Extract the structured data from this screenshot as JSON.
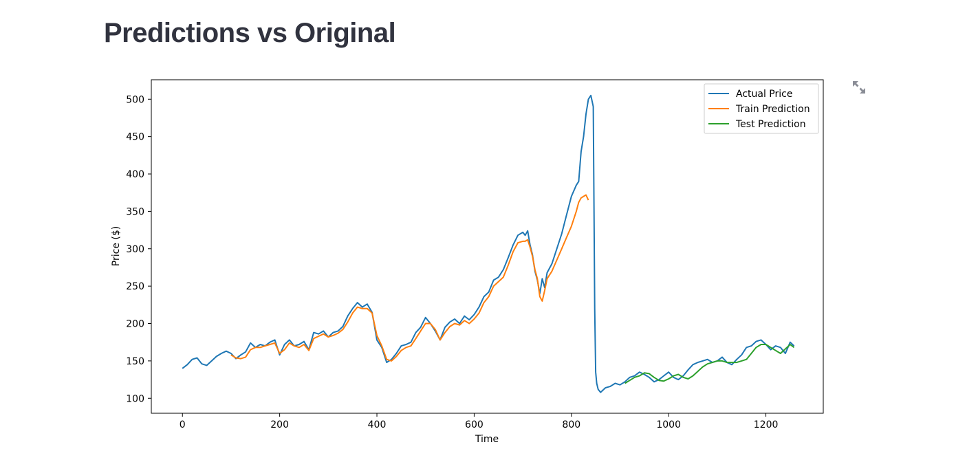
{
  "page": {
    "title": "Predictions vs Original",
    "toolbar": {
      "expand_icon": "expand-arrows-icon"
    }
  },
  "chart_data": {
    "type": "line",
    "title": "",
    "xlabel": "Time",
    "ylabel": "Price ($)",
    "xlim": [
      -64,
      1318
    ],
    "ylim": [
      80,
      526
    ],
    "xticks": [
      0,
      200,
      400,
      600,
      800,
      1000,
      1200
    ],
    "yticks": [
      100,
      150,
      200,
      250,
      300,
      350,
      400,
      450,
      500
    ],
    "grid": false,
    "legend_position": "top-right",
    "series": [
      {
        "name": "Actual Price",
        "color": "#1f77b4",
        "x": [
          0,
          10,
          20,
          30,
          40,
          50,
          60,
          70,
          80,
          90,
          100,
          110,
          120,
          130,
          140,
          150,
          160,
          170,
          180,
          190,
          200,
          210,
          220,
          230,
          240,
          250,
          260,
          270,
          280,
          290,
          300,
          310,
          320,
          330,
          340,
          350,
          360,
          370,
          380,
          390,
          400,
          410,
          420,
          430,
          440,
          450,
          460,
          470,
          480,
          490,
          500,
          510,
          520,
          530,
          540,
          550,
          560,
          570,
          580,
          590,
          600,
          610,
          620,
          630,
          640,
          650,
          660,
          670,
          680,
          690,
          700,
          705,
          710,
          715,
          720,
          725,
          730,
          735,
          740,
          745,
          750,
          760,
          770,
          780,
          790,
          800,
          810,
          815,
          820,
          825,
          830,
          835,
          840,
          845,
          848,
          850,
          852,
          855,
          860,
          870,
          880,
          890,
          900,
          910,
          920,
          930,
          940,
          950,
          960,
          970,
          980,
          990,
          1000,
          1010,
          1020,
          1030,
          1040,
          1050,
          1060,
          1070,
          1080,
          1090,
          1100,
          1110,
          1120,
          1130,
          1140,
          1150,
          1160,
          1170,
          1180,
          1190,
          1200,
          1210,
          1220,
          1230,
          1240,
          1250,
          1258
        ],
        "values": [
          140,
          145,
          152,
          154,
          146,
          144,
          150,
          156,
          160,
          163,
          160,
          153,
          158,
          162,
          174,
          168,
          172,
          170,
          175,
          178,
          158,
          172,
          178,
          170,
          172,
          176,
          165,
          188,
          186,
          190,
          182,
          188,
          190,
          196,
          210,
          220,
          228,
          222,
          226,
          215,
          178,
          168,
          148,
          152,
          160,
          170,
          172,
          175,
          188,
          195,
          208,
          200,
          190,
          178,
          195,
          202,
          206,
          200,
          210,
          205,
          212,
          222,
          236,
          242,
          258,
          262,
          272,
          288,
          305,
          318,
          322,
          318,
          324,
          305,
          292,
          270,
          258,
          240,
          260,
          248,
          268,
          280,
          300,
          320,
          345,
          370,
          385,
          390,
          430,
          450,
          480,
          500,
          505,
          490,
          220,
          135,
          120,
          112,
          108,
          114,
          116,
          120,
          118,
          122,
          128,
          130,
          135,
          132,
          128,
          122,
          125,
          130,
          135,
          128,
          125,
          130,
          138,
          145,
          148,
          150,
          152,
          148,
          150,
          155,
          148,
          145,
          152,
          158,
          168,
          170,
          176,
          178,
          172,
          165,
          170,
          168,
          160,
          175,
          170
        ]
      },
      {
        "name": "Train Prediction",
        "color": "#ff7f0e",
        "x": [
          100,
          110,
          120,
          130,
          140,
          150,
          160,
          170,
          180,
          190,
          200,
          210,
          220,
          230,
          240,
          250,
          260,
          270,
          280,
          290,
          300,
          310,
          320,
          330,
          340,
          350,
          360,
          370,
          380,
          390,
          400,
          410,
          420,
          430,
          440,
          450,
          460,
          470,
          480,
          490,
          500,
          510,
          520,
          530,
          540,
          550,
          560,
          570,
          580,
          590,
          600,
          610,
          620,
          630,
          640,
          650,
          660,
          670,
          680,
          690,
          700,
          705,
          710,
          715,
          720,
          725,
          730,
          735,
          740,
          745,
          750,
          760,
          770,
          780,
          790,
          800,
          810,
          815,
          820,
          825,
          830,
          835
        ],
        "values": [
          158,
          154,
          153,
          155,
          165,
          168,
          168,
          170,
          172,
          174,
          160,
          165,
          174,
          170,
          168,
          172,
          164,
          180,
          183,
          186,
          182,
          184,
          187,
          192,
          202,
          214,
          222,
          220,
          220,
          214,
          184,
          170,
          152,
          150,
          156,
          164,
          168,
          170,
          180,
          190,
          200,
          200,
          192,
          178,
          188,
          196,
          200,
          198,
          204,
          200,
          206,
          214,
          228,
          236,
          250,
          256,
          262,
          278,
          296,
          308,
          310,
          310,
          312,
          302,
          290,
          272,
          260,
          236,
          230,
          244,
          260,
          270,
          285,
          300,
          315,
          330,
          350,
          362,
          368,
          370,
          372,
          365
        ]
      },
      {
        "name": "Test Prediction",
        "color": "#2ca02c",
        "x": [
          910,
          920,
          930,
          940,
          950,
          960,
          970,
          980,
          990,
          1000,
          1010,
          1020,
          1030,
          1040,
          1050,
          1060,
          1070,
          1080,
          1090,
          1100,
          1110,
          1120,
          1130,
          1140,
          1150,
          1160,
          1170,
          1180,
          1190,
          1200,
          1210,
          1220,
          1230,
          1240,
          1250,
          1258
        ],
        "values": [
          120,
          124,
          128,
          130,
          134,
          133,
          128,
          124,
          123,
          126,
          130,
          132,
          128,
          126,
          130,
          136,
          142,
          146,
          148,
          150,
          150,
          148,
          148,
          148,
          150,
          152,
          160,
          168,
          172,
          172,
          168,
          164,
          160,
          166,
          172,
          168
        ]
      }
    ]
  }
}
